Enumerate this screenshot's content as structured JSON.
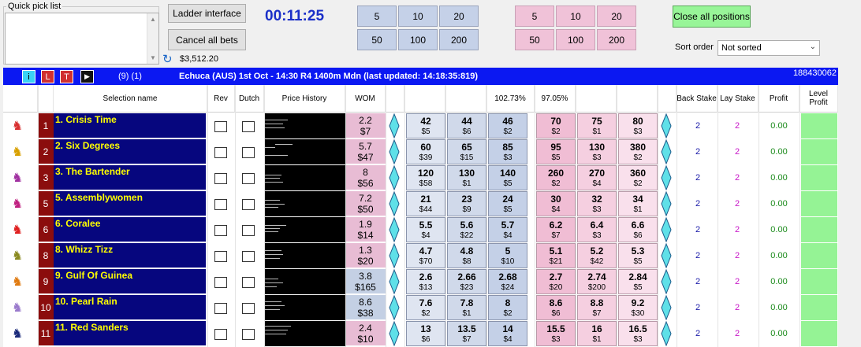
{
  "quick_pick": {
    "title": "Quick pick list"
  },
  "buttons": {
    "ladder": "Ladder interface",
    "cancel_all": "Cancel all bets",
    "close_all": "Close all positions"
  },
  "clock": "00:11:25",
  "balance": "$3,512.20",
  "stakes": {
    "back": [
      "5",
      "10",
      "20",
      "50",
      "100",
      "200"
    ],
    "lay": [
      "5",
      "10",
      "20",
      "50",
      "100",
      "200"
    ]
  },
  "sort": {
    "label": "Sort order",
    "value": "Not sorted"
  },
  "market_bar": {
    "buttons": [
      "i",
      "L",
      "T",
      "▶"
    ],
    "counts": "(9) (1)",
    "title": "Echuca (AUS) 1st Oct - 14:30 R4 1400m Mdn (last updated: 14:18:35:819)",
    "market_id": "188430062"
  },
  "headers": {
    "selection": "Selection name",
    "rev": "Rev",
    "dutch": "Dutch",
    "price_history": "Price History",
    "wom": "WOM",
    "back_book": "102.73%",
    "lay_book": "97.05%",
    "back_stake": "Back Stake",
    "lay_stake": "Lay Stake",
    "profit": "Profit",
    "level_profit": "Level Profit"
  },
  "colors": {
    "accent_blue": "#0b18f2",
    "selection_bg": "#06067e",
    "selection_text": "#ffff00",
    "number_bg": "#8b0d0d",
    "level_profit": "#95f395"
  },
  "runners": [
    {
      "num": "1",
      "name": "1. Crisis Time",
      "wom_top": "2.2",
      "wom_bot": "$7",
      "wom_color": "pink",
      "silk_icon": "silk-red-white",
      "silk_glyph": "♞",
      "silk_color": "#d83030",
      "back": [
        [
          "42",
          "$5"
        ],
        [
          "44",
          "$6"
        ],
        [
          "46",
          "$2"
        ]
      ],
      "lay": [
        [
          "70",
          "$2"
        ],
        [
          "75",
          "$1"
        ],
        [
          "80",
          "$3"
        ]
      ],
      "back_stake": "2",
      "lay_stake": "2",
      "profit": "0.00"
    },
    {
      "num": "2",
      "name": "2. Six Degrees",
      "wom_top": "5.7",
      "wom_bot": "$47",
      "wom_color": "pink",
      "silk_icon": "silk-yellow-black",
      "silk_glyph": "♞",
      "silk_color": "#d8a000",
      "back": [
        [
          "60",
          "$39"
        ],
        [
          "65",
          "$15"
        ],
        [
          "85",
          "$3"
        ]
      ],
      "lay": [
        [
          "95",
          "$5"
        ],
        [
          "130",
          "$3"
        ],
        [
          "380",
          "$2"
        ]
      ],
      "back_stake": "2",
      "lay_stake": "2",
      "profit": "0.00"
    },
    {
      "num": "3",
      "name": "3. The Bartender",
      "wom_top": "8",
      "wom_bot": "$56",
      "wom_color": "pink",
      "silk_icon": "silk-purple-spots",
      "silk_glyph": "♞",
      "silk_color": "#a030a0",
      "back": [
        [
          "120",
          "$58"
        ],
        [
          "130",
          "$1"
        ],
        [
          "140",
          "$5"
        ]
      ],
      "lay": [
        [
          "260",
          "$2"
        ],
        [
          "270",
          "$4"
        ],
        [
          "360",
          "$2"
        ]
      ],
      "back_stake": "2",
      "lay_stake": "2",
      "profit": "0.00"
    },
    {
      "num": "5",
      "name": "5. Assemblywomen",
      "wom_top": "7.2",
      "wom_bot": "$50",
      "wom_color": "pink",
      "silk_icon": "silk-magenta-cross",
      "silk_glyph": "♞",
      "silk_color": "#c02080",
      "back": [
        [
          "21",
          "$44"
        ],
        [
          "23",
          "$9"
        ],
        [
          "24",
          "$5"
        ]
      ],
      "lay": [
        [
          "30",
          "$4"
        ],
        [
          "32",
          "$3"
        ],
        [
          "34",
          "$1"
        ]
      ],
      "back_stake": "2",
      "lay_stake": "2",
      "profit": "0.00"
    },
    {
      "num": "6",
      "name": "6. Coralee",
      "wom_top": "1.9",
      "wom_bot": "$14",
      "wom_color": "pink",
      "silk_icon": "silk-red-diamond",
      "silk_glyph": "♞",
      "silk_color": "#e02020",
      "back": [
        [
          "5.5",
          "$4"
        ],
        [
          "5.6",
          "$22"
        ],
        [
          "5.7",
          "$4"
        ]
      ],
      "lay": [
        [
          "6.2",
          "$7"
        ],
        [
          "6.4",
          "$3"
        ],
        [
          "6.6",
          "$6"
        ]
      ],
      "back_stake": "2",
      "lay_stake": "2",
      "profit": "0.00"
    },
    {
      "num": "8",
      "name": "8. Whizz Tizz",
      "wom_top": "1.3",
      "wom_bot": "$20",
      "wom_color": "pink",
      "silk_icon": "silk-olive-ring",
      "silk_glyph": "♞",
      "silk_color": "#8a8a20",
      "back": [
        [
          "4.7",
          "$70"
        ],
        [
          "4.8",
          "$8"
        ],
        [
          "5",
          "$10"
        ]
      ],
      "lay": [
        [
          "5.1",
          "$21"
        ],
        [
          "5.2",
          "$42"
        ],
        [
          "5.3",
          "$5"
        ]
      ],
      "back_stake": "2",
      "lay_stake": "2",
      "profit": "0.00"
    },
    {
      "num": "9",
      "name": "9. Gulf Of Guinea",
      "wom_top": "3.8",
      "wom_bot": "$165",
      "wom_color": "blue",
      "silk_icon": "silk-orange-spots",
      "silk_glyph": "♞",
      "silk_color": "#e07a10",
      "back": [
        [
          "2.6",
          "$13"
        ],
        [
          "2.66",
          "$23"
        ],
        [
          "2.68",
          "$24"
        ]
      ],
      "lay": [
        [
          "2.7",
          "$20"
        ],
        [
          "2.74",
          "$200"
        ],
        [
          "2.84",
          "$5"
        ]
      ],
      "back_stake": "2",
      "lay_stake": "2",
      "profit": "0.00"
    },
    {
      "num": "10",
      "name": "10. Pearl Rain",
      "wom_top": "8.6",
      "wom_bot": "$38",
      "wom_color": "blue",
      "silk_icon": "silk-lilac",
      "silk_glyph": "♞",
      "silk_color": "#9a7acc",
      "back": [
        [
          "7.6",
          "$2"
        ],
        [
          "7.8",
          "$1"
        ],
        [
          "8",
          "$2"
        ]
      ],
      "lay": [
        [
          "8.6",
          "$6"
        ],
        [
          "8.8",
          "$7"
        ],
        [
          "9.2",
          "$30"
        ]
      ],
      "back_stake": "2",
      "lay_stake": "2",
      "profit": "0.00"
    },
    {
      "num": "11",
      "name": "11. Red Sanders",
      "wom_top": "2.4",
      "wom_bot": "$10",
      "wom_color": "pink",
      "silk_icon": "silk-navy-white",
      "silk_glyph": "♞",
      "silk_color": "#1a2a7a",
      "back": [
        [
          "13",
          "$6"
        ],
        [
          "13.5",
          "$7"
        ],
        [
          "14",
          "$4"
        ]
      ],
      "lay": [
        [
          "15.5",
          "$3"
        ],
        [
          "16",
          "$1"
        ],
        [
          "16.5",
          "$3"
        ]
      ],
      "back_stake": "2",
      "lay_stake": "2",
      "profit": "0.00"
    }
  ]
}
